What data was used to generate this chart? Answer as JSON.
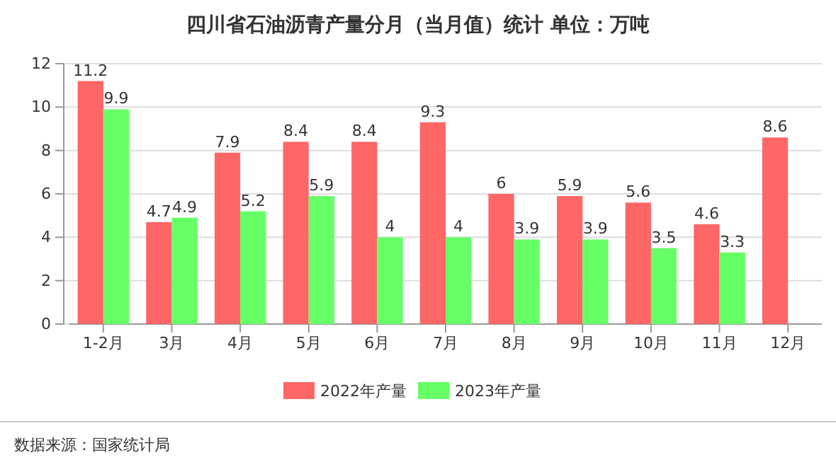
{
  "chart_data": {
    "type": "bar",
    "title": "四川省石油沥青产量分月（当月值）统计  单位：万吨",
    "categories": [
      "1-2月",
      "3月",
      "4月",
      "5月",
      "6月",
      "7月",
      "8月",
      "9月",
      "10月",
      "11月",
      "12月"
    ],
    "series": [
      {
        "name": "2022年产量",
        "color": "#ff6666",
        "values": [
          11.2,
          4.7,
          7.9,
          8.4,
          8.4,
          9.3,
          6,
          5.9,
          5.6,
          4.6,
          8.6
        ]
      },
      {
        "name": "2023年产量",
        "color": "#66ff66",
        "values": [
          9.9,
          4.9,
          5.2,
          5.9,
          4,
          4,
          3.9,
          3.9,
          3.5,
          3.3,
          null
        ]
      }
    ],
    "ylim": [
      0,
      12
    ],
    "yticks": [
      0,
      2,
      4,
      6,
      8,
      10,
      12
    ],
    "grid": "y",
    "legend": "bottom",
    "data_labels": true,
    "annotations": [
      "数据来源：国家统计局"
    ]
  }
}
